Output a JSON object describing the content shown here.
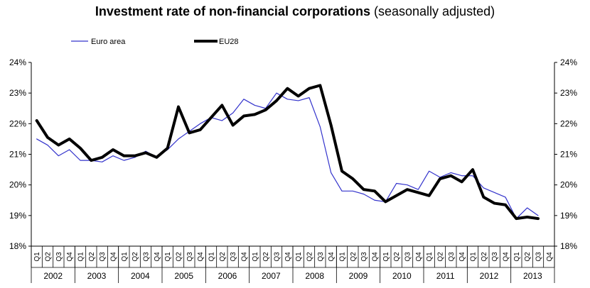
{
  "title": {
    "main": "Investment rate of non-financial corporations",
    "sub": "(seasonally adjusted)"
  },
  "colors": {
    "euro_area": "#3333cc",
    "eu28": "#000000"
  },
  "chart_data": {
    "type": "line",
    "title": "Investment rate of non-financial corporations (seasonally adjusted)",
    "xlabel": "",
    "ylabel": "",
    "ylim": [
      18,
      24
    ],
    "yticks": [
      "18%",
      "19%",
      "20%",
      "21%",
      "22%",
      "23%",
      "24%"
    ],
    "grid": false,
    "legend": "top-left",
    "quarter_labels": [
      "Q1",
      "Q2",
      "Q3",
      "Q4"
    ],
    "years": [
      "2002",
      "2003",
      "2004",
      "2005",
      "2006",
      "2007",
      "2008",
      "2009",
      "2010",
      "2011",
      "2012",
      "2013"
    ],
    "series": [
      {
        "name": "Euro area",
        "values": [
          21.5,
          21.3,
          20.95,
          21.15,
          20.8,
          20.8,
          20.75,
          20.95,
          20.8,
          20.9,
          21.1,
          20.9,
          21.15,
          21.5,
          21.75,
          22.0,
          22.2,
          22.1,
          22.35,
          22.8,
          22.6,
          22.5,
          23.0,
          22.8,
          22.75,
          22.85,
          21.9,
          20.4,
          19.8,
          19.8,
          19.7,
          19.5,
          19.45,
          20.05,
          20.0,
          19.85,
          20.45,
          20.25,
          20.4,
          20.3,
          20.3,
          19.9,
          19.75,
          19.6,
          18.9,
          19.25,
          19.0,
          null
        ]
      },
      {
        "name": "EU28",
        "values": [
          22.1,
          21.55,
          21.3,
          21.5,
          21.2,
          20.8,
          20.9,
          21.15,
          20.95,
          20.95,
          21.05,
          20.9,
          21.2,
          22.55,
          21.7,
          21.8,
          22.2,
          22.6,
          21.95,
          22.25,
          22.3,
          22.45,
          22.75,
          23.15,
          22.9,
          23.15,
          23.25,
          21.95,
          20.45,
          20.2,
          19.85,
          19.8,
          19.45,
          19.65,
          19.85,
          19.75,
          19.65,
          20.2,
          20.3,
          20.1,
          20.5,
          19.6,
          19.4,
          19.35,
          18.9,
          18.95,
          18.9,
          null
        ]
      }
    ]
  }
}
